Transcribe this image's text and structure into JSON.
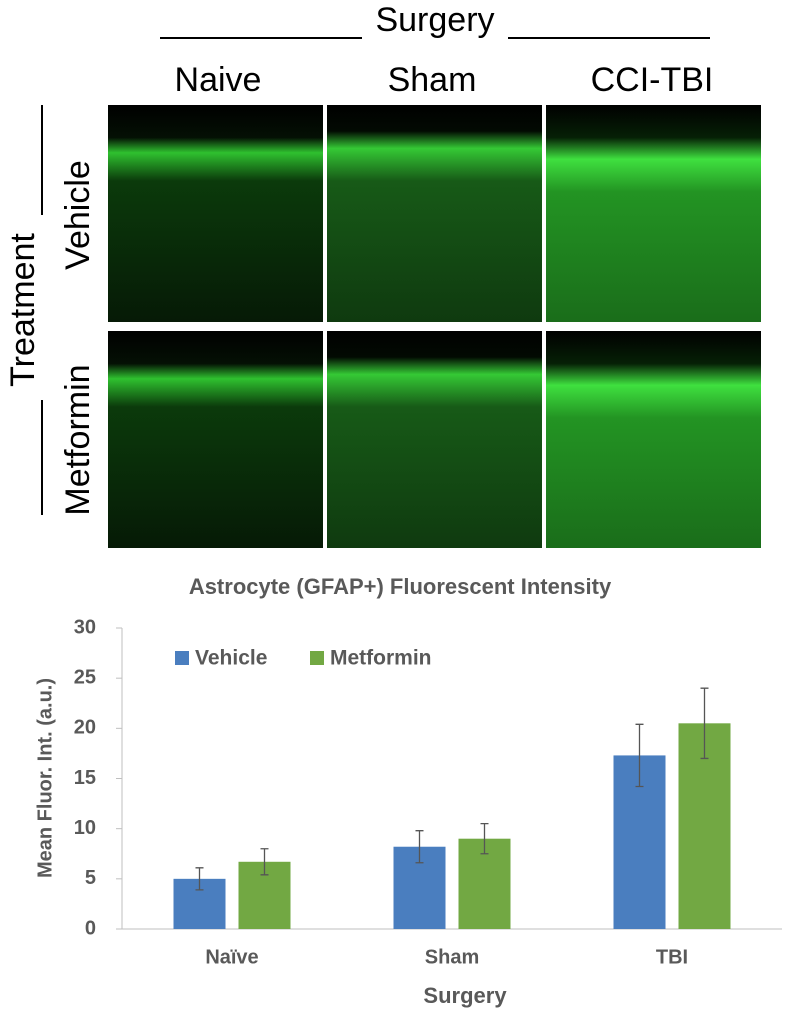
{
  "figure": {
    "surgery_label": "Surgery",
    "columns": [
      "Naive",
      "Sham",
      "CCI-TBI"
    ],
    "treatment_label": "Treatment",
    "rows": [
      "Vehicle",
      "Metformin"
    ]
  },
  "chart_data": {
    "type": "bar",
    "title": "Astrocyte (GFAP+) Fluorescent Intensity",
    "x_label": "Surgery",
    "y_label": "Mean Fluor. Int. (a.u.)",
    "categories": [
      "Naïve",
      "Sham",
      "TBI"
    ],
    "series": [
      {
        "name": "Vehicle",
        "color": "#4a7ebf",
        "values": [
          5.0,
          8.2,
          17.3
        ],
        "errors": [
          1.1,
          1.6,
          3.1
        ]
      },
      {
        "name": "Metformin",
        "color": "#72a843",
        "values": [
          6.7,
          9.0,
          20.5
        ],
        "errors": [
          1.3,
          1.5,
          3.5
        ]
      }
    ],
    "ylim": [
      0,
      30
    ],
    "yticks": [
      0,
      5,
      10,
      15,
      20,
      25,
      30
    ],
    "grid": false,
    "legend": "top-left"
  }
}
